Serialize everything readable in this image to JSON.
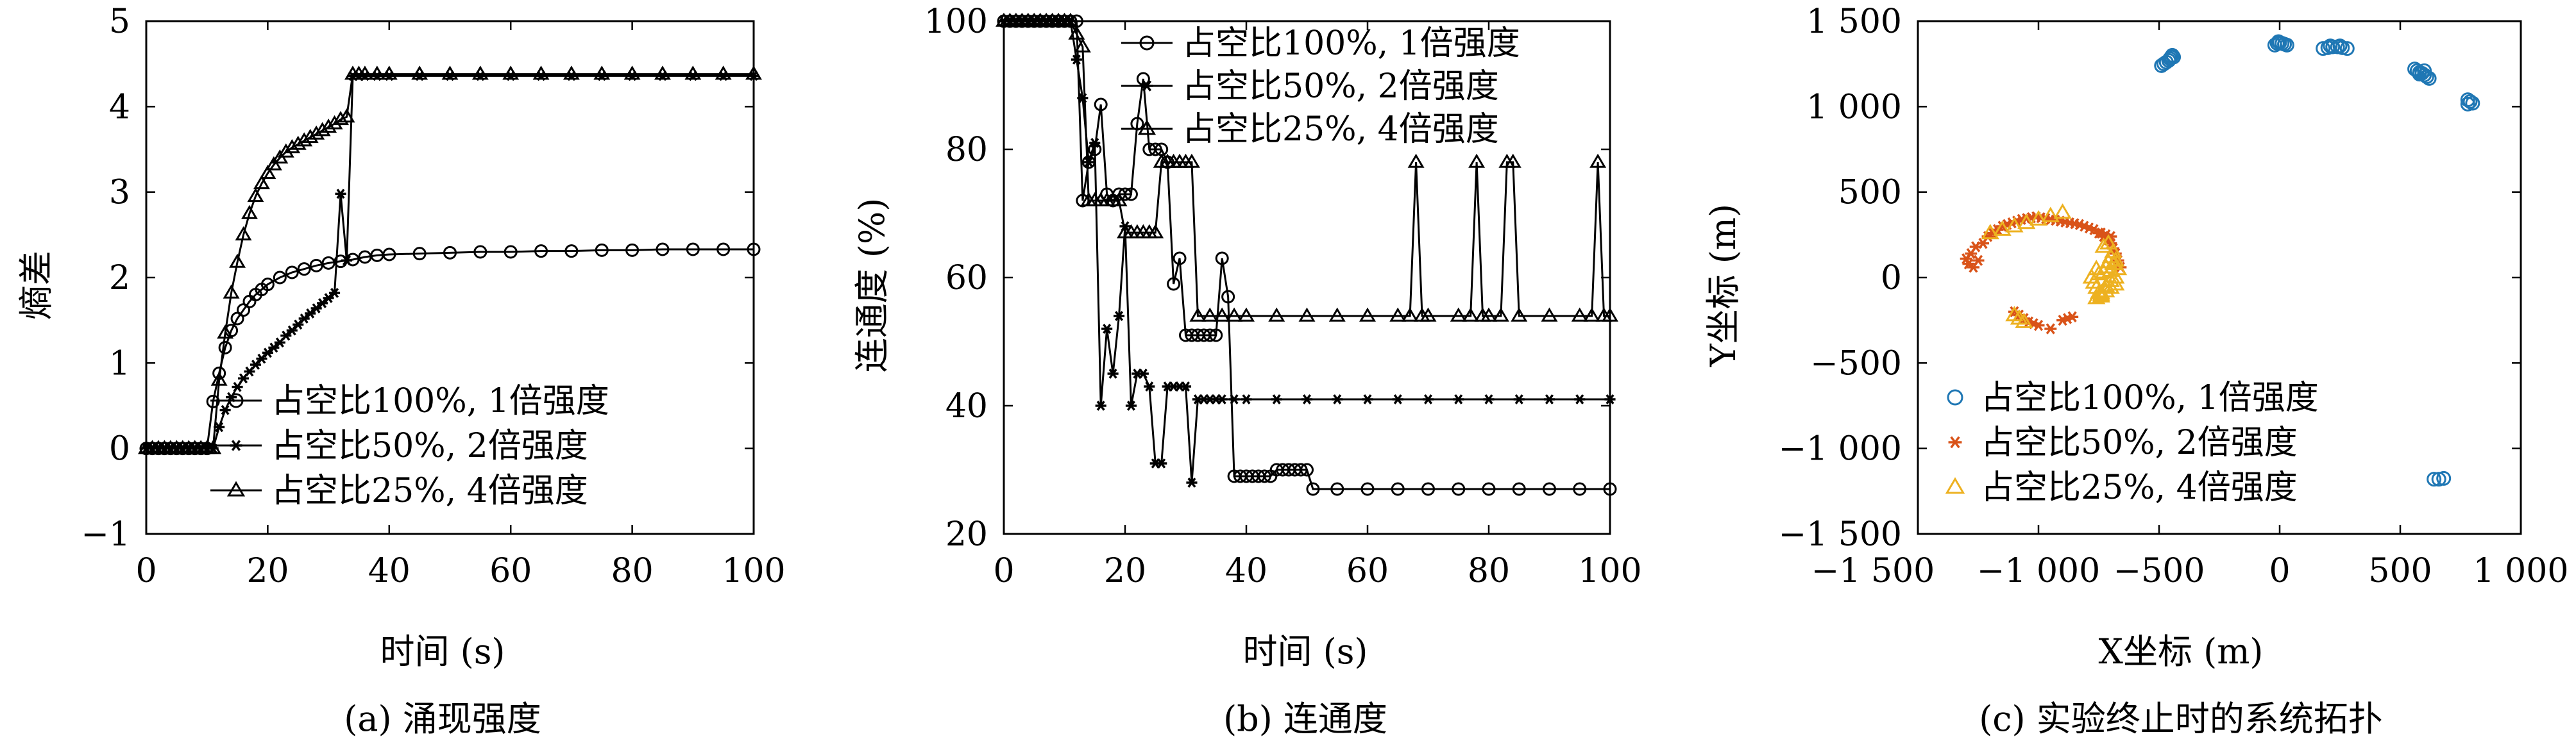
{
  "chart_data": [
    {
      "type": "line",
      "caption": "(a) 涌现强度",
      "xlabel": "时间 (s)",
      "ylabel": "熵差",
      "xlim": [
        0,
        100
      ],
      "ylim": [
        -1,
        5
      ],
      "xticks": [
        0,
        20,
        40,
        60,
        80,
        100
      ],
      "yticks": [
        -1,
        0,
        1,
        2,
        3,
        4,
        5
      ],
      "ytick_labels": [
        "−1",
        "0",
        "1",
        "2",
        "3",
        "4",
        "5"
      ],
      "grid": false,
      "legend_position": "lower-right",
      "series": [
        {
          "name": "占空比100%, 1倍强度",
          "marker": "circle",
          "x": [
            0,
            1,
            2,
            3,
            4,
            5,
            6,
            7,
            8,
            9,
            10,
            11,
            12,
            13,
            14,
            15,
            16,
            17,
            18,
            19,
            20,
            22,
            24,
            26,
            28,
            30,
            32,
            34,
            36,
            38,
            40,
            45,
            50,
            55,
            60,
            65,
            70,
            75,
            80,
            85,
            90,
            95,
            100
          ],
          "y": [
            0,
            0,
            0,
            0,
            0,
            0,
            0,
            0,
            0,
            0,
            0,
            0.55,
            0.88,
            1.18,
            1.38,
            1.52,
            1.62,
            1.72,
            1.8,
            1.86,
            1.92,
            2.0,
            2.06,
            2.1,
            2.14,
            2.17,
            2.19,
            2.21,
            2.24,
            2.26,
            2.27,
            2.28,
            2.29,
            2.3,
            2.3,
            2.31,
            2.31,
            2.32,
            2.32,
            2.33,
            2.33,
            2.33,
            2.33
          ]
        },
        {
          "name": "占空比50%, 2倍强度",
          "marker": "star",
          "x": [
            0,
            1,
            2,
            3,
            4,
            5,
            6,
            7,
            8,
            9,
            10,
            11,
            12,
            13,
            14,
            15,
            16,
            17,
            18,
            19,
            20,
            21,
            22,
            23,
            24,
            25,
            26,
            27,
            28,
            29,
            30,
            31,
            32,
            33,
            34,
            35,
            36,
            38,
            40,
            45,
            50,
            55,
            60,
            65,
            70,
            75,
            80,
            85,
            90,
            95,
            100
          ],
          "y": [
            0,
            0,
            0,
            0,
            0,
            0,
            0,
            0,
            0,
            0,
            0,
            0,
            0.25,
            0.45,
            0.6,
            0.72,
            0.82,
            0.9,
            0.98,
            1.05,
            1.12,
            1.18,
            1.24,
            1.32,
            1.38,
            1.45,
            1.52,
            1.58,
            1.64,
            1.7,
            1.76,
            1.82,
            2.98,
            2.2,
            4.36,
            4.36,
            4.36,
            4.36,
            4.36,
            4.36,
            4.36,
            4.36,
            4.36,
            4.36,
            4.36,
            4.36,
            4.36,
            4.36,
            4.36,
            4.36,
            4.36
          ]
        },
        {
          "name": "占空比25%, 4倍强度",
          "marker": "triangle",
          "x": [
            0,
            1,
            2,
            3,
            4,
            5,
            6,
            7,
            8,
            9,
            10,
            11,
            12,
            13,
            14,
            15,
            16,
            17,
            18,
            19,
            20,
            21,
            22,
            23,
            24,
            25,
            26,
            27,
            28,
            29,
            30,
            31,
            32,
            33,
            34,
            35,
            36,
            38,
            40,
            45,
            50,
            55,
            60,
            65,
            70,
            75,
            80,
            85,
            90,
            95,
            100
          ],
          "y": [
            0,
            0,
            0,
            0,
            0,
            0,
            0,
            0,
            0,
            0,
            0,
            0,
            0.8,
            1.35,
            1.82,
            2.18,
            2.5,
            2.75,
            2.95,
            3.1,
            3.22,
            3.32,
            3.4,
            3.47,
            3.52,
            3.56,
            3.6,
            3.64,
            3.68,
            3.72,
            3.76,
            3.8,
            3.85,
            3.88,
            4.38,
            4.38,
            4.38,
            4.38,
            4.38,
            4.38,
            4.38,
            4.38,
            4.38,
            4.38,
            4.38,
            4.38,
            4.38,
            4.38,
            4.38,
            4.38,
            4.38
          ]
        }
      ]
    },
    {
      "type": "line",
      "caption": "(b) 连通度",
      "xlabel": "时间 (s)",
      "ylabel": "连通度 (%)",
      "xlim": [
        0,
        100
      ],
      "ylim": [
        20,
        100
      ],
      "xticks": [
        0,
        20,
        40,
        60,
        80,
        100
      ],
      "yticks": [
        20,
        40,
        60,
        80,
        100
      ],
      "ytick_labels": [
        "20",
        "40",
        "60",
        "80",
        "100"
      ],
      "grid": false,
      "legend_position": "top-right",
      "series": [
        {
          "name": "占空比100%, 1倍强度",
          "marker": "circle",
          "x": [
            0,
            1,
            2,
            3,
            4,
            5,
            6,
            7,
            8,
            9,
            10,
            11,
            12,
            13,
            14,
            15,
            16,
            17,
            18,
            19,
            20,
            21,
            22,
            23,
            24,
            25,
            26,
            27,
            28,
            29,
            30,
            31,
            32,
            33,
            34,
            35,
            36,
            37,
            38,
            39,
            40,
            41,
            42,
            43,
            44,
            45,
            46,
            47,
            48,
            49,
            50,
            51,
            55,
            60,
            65,
            70,
            75,
            80,
            85,
            90,
            95,
            100
          ],
          "y": [
            100,
            100,
            100,
            100,
            100,
            100,
            100,
            100,
            100,
            100,
            100,
            100,
            100,
            72,
            78,
            80,
            87,
            73,
            72,
            73,
            73,
            73,
            84,
            91,
            80,
            80,
            80,
            78,
            59,
            63,
            51,
            51,
            51,
            51,
            51,
            51,
            63,
            57,
            29,
            29,
            29,
            29,
            29,
            29,
            29,
            30,
            30,
            30,
            30,
            30,
            30,
            27,
            27,
            27,
            27,
            27,
            27,
            27,
            27,
            27,
            27,
            27
          ]
        },
        {
          "name": "占空比50%, 2倍强度",
          "marker": "star",
          "x": [
            0,
            1,
            2,
            3,
            4,
            5,
            6,
            7,
            8,
            9,
            10,
            11,
            12,
            13,
            14,
            15,
            16,
            17,
            18,
            19,
            20,
            21,
            22,
            23,
            24,
            25,
            26,
            27,
            28,
            29,
            30,
            31,
            32,
            33,
            34,
            35,
            36,
            38,
            40,
            45,
            50,
            55,
            60,
            65,
            70,
            75,
            80,
            85,
            90,
            95,
            100
          ],
          "y": [
            100,
            100,
            100,
            100,
            100,
            100,
            100,
            100,
            100,
            100,
            100,
            100,
            94,
            88,
            78,
            81,
            40,
            52,
            45,
            54,
            68,
            40,
            45,
            45,
            43,
            31,
            31,
            43,
            43,
            43,
            43,
            28,
            41,
            41,
            41,
            41,
            41,
            41,
            41,
            41,
            41,
            41,
            41,
            41,
            41,
            41,
            41,
            41,
            41,
            41,
            41
          ]
        },
        {
          "name": "占空比25%, 4倍强度",
          "marker": "triangle",
          "x": [
            0,
            1,
            2,
            3,
            4,
            5,
            6,
            7,
            8,
            9,
            10,
            11,
            12,
            13,
            14,
            15,
            16,
            17,
            18,
            19,
            20,
            21,
            22,
            23,
            24,
            25,
            26,
            27,
            28,
            29,
            30,
            31,
            32,
            34,
            36,
            38,
            40,
            45,
            50,
            55,
            60,
            65,
            67,
            68,
            69,
            70,
            75,
            77,
            78,
            79,
            80,
            82,
            83,
            84,
            85,
            90,
            95,
            97,
            98,
            99,
            100
          ],
          "y": [
            100,
            100,
            100,
            100,
            100,
            100,
            100,
            100,
            100,
            100,
            100,
            100,
            98,
            96,
            72,
            72,
            72,
            72,
            72,
            72,
            67,
            67,
            67,
            67,
            67,
            67,
            78,
            78,
            78,
            78,
            78,
            78,
            54,
            54,
            54,
            54,
            54,
            54,
            54,
            54,
            54,
            54,
            54,
            78,
            54,
            54,
            54,
            54,
            78,
            54,
            54,
            54,
            78,
            78,
            54,
            54,
            54,
            54,
            78,
            54,
            54
          ]
        }
      ]
    },
    {
      "type": "scatter",
      "caption": "(c) 实验终止时的系统拓扑",
      "xlabel": "X坐标 (m)",
      "ylabel": "Y坐标 (m)",
      "xlim": [
        -1500,
        1000
      ],
      "ylim": [
        -1500,
        1500
      ],
      "xticks": [
        -1000,
        -500,
        0,
        500,
        1000
      ],
      "yticks": [
        -1500,
        -1000,
        -500,
        0,
        500,
        1000,
        1500
      ],
      "xtick_labels": [
        "−1 000",
        "−500",
        "0",
        "500",
        "1 000"
      ],
      "ytick_labels": [
        "−1 500",
        "−1 000",
        "−500",
        "0",
        "500",
        "1 000",
        "1 500"
      ],
      "x_edge_labels": [
        "−1 500",
        "1 000"
      ],
      "grid": false,
      "legend_position": "lower-left",
      "colors": {
        "series1": "#1f77b4",
        "series2": "#d95319",
        "series3": "#edb120"
      },
      "series": [
        {
          "name": "占空比100%, 1倍强度",
          "marker": "circle",
          "x": [
            -490,
            -480,
            -470,
            -460,
            -455,
            -450,
            -445,
            -440,
            -20,
            -10,
            0,
            10,
            20,
            30,
            -5,
            180,
            200,
            220,
            240,
            260,
            280,
            210,
            250,
            560,
            570,
            580,
            590,
            600,
            610,
            620,
            580,
            600,
            780,
            790,
            800,
            780,
            640,
            660,
            680
          ],
          "y": [
            1240,
            1250,
            1260,
            1270,
            1280,
            1290,
            1300,
            1290,
            1360,
            1370,
            1375,
            1370,
            1365,
            1360,
            1380,
            1340,
            1345,
            1350,
            1350,
            1345,
            1340,
            1355,
            1355,
            1220,
            1210,
            1200,
            1195,
            1185,
            1175,
            1165,
            1190,
            1210,
            1040,
            1030,
            1020,
            1015,
            -1180,
            -1180,
            -1175
          ]
        },
        {
          "name": "占空比50%, 2倍强度",
          "marker": "star",
          "x": [
            -1300,
            -1290,
            -1280,
            -1270,
            -1260,
            -1250,
            -1230,
            -1210,
            -1190,
            -1170,
            -1150,
            -1130,
            -1110,
            -1090,
            -1070,
            -1050,
            -1030,
            -1010,
            -990,
            -970,
            -950,
            -930,
            -910,
            -890,
            -870,
            -850,
            -830,
            -810,
            -790,
            -770,
            -750,
            -730,
            -710,
            -700,
            -690,
            -680,
            -670,
            -660,
            -1100,
            -1080,
            -1060,
            -1040,
            -1020,
            -1000,
            -950,
            -900,
            -880,
            -860,
            -740,
            -720,
            -700
          ],
          "y": [
            110,
            80,
            140,
            60,
            180,
            100,
            200,
            240,
            260,
            280,
            300,
            310,
            320,
            330,
            340,
            345,
            350,
            355,
            350,
            345,
            340,
            335,
            330,
            325,
            320,
            315,
            310,
            300,
            290,
            280,
            260,
            240,
            220,
            200,
            170,
            140,
            100,
            60,
            -200,
            -220,
            -240,
            -260,
            -270,
            -280,
            -300,
            -250,
            -240,
            -230,
            260,
            250,
            240
          ]
        },
        {
          "name": "占空比25%, 4倍强度",
          "marker": "triangle",
          "x": [
            -1200,
            -1150,
            -1100,
            -1050,
            -1000,
            -950,
            -900,
            -1100,
            -1080,
            -1060,
            -780,
            -770,
            -760,
            -750,
            -740,
            -730,
            -720,
            -710,
            -700,
            -690,
            -680,
            -670,
            -760,
            -740,
            -720,
            -700,
            -680,
            -730,
            -710,
            -690,
            -750,
            -700,
            -680,
            -720,
            -700,
            -690,
            -740,
            -760
          ],
          "y": [
            260,
            280,
            300,
            320,
            340,
            360,
            380,
            -220,
            -240,
            -260,
            0,
            -30,
            -60,
            -90,
            -110,
            30,
            60,
            90,
            120,
            150,
            100,
            50,
            -120,
            -100,
            -80,
            -60,
            -40,
            180,
            200,
            150,
            20,
            -20,
            0,
            -50,
            40,
            80,
            -90,
            50
          ]
        }
      ]
    }
  ]
}
